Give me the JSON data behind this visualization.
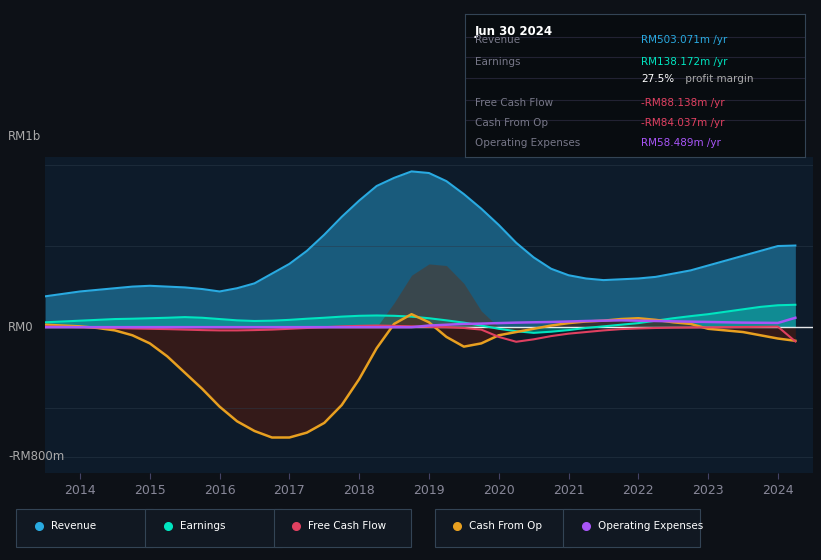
{
  "bg_color": "#0d1117",
  "plot_bg_color": "#0d1b2a",
  "ylabel_top": "RM1b",
  "ylabel_bottom": "-RM800m",
  "y_zero_label": "RM0",
  "years": [
    2013.5,
    2014.0,
    2014.25,
    2014.5,
    2014.75,
    2015.0,
    2015.25,
    2015.5,
    2015.75,
    2016.0,
    2016.25,
    2016.5,
    2016.75,
    2017.0,
    2017.25,
    2017.5,
    2017.75,
    2018.0,
    2018.25,
    2018.5,
    2018.75,
    2019.0,
    2019.25,
    2019.5,
    2019.75,
    2020.0,
    2020.25,
    2020.5,
    2020.75,
    2021.0,
    2021.25,
    2021.5,
    2021.75,
    2022.0,
    2022.25,
    2022.5,
    2022.75,
    2023.0,
    2023.25,
    2023.5,
    2023.75,
    2024.0,
    2024.25
  ],
  "revenue": [
    190,
    220,
    230,
    240,
    250,
    255,
    250,
    245,
    235,
    220,
    240,
    270,
    330,
    390,
    470,
    570,
    680,
    780,
    870,
    920,
    960,
    950,
    900,
    820,
    730,
    630,
    520,
    430,
    360,
    320,
    300,
    290,
    295,
    300,
    310,
    330,
    350,
    380,
    410,
    440,
    470,
    500,
    503
  ],
  "earnings": [
    30,
    40,
    45,
    50,
    52,
    55,
    58,
    62,
    58,
    50,
    42,
    38,
    40,
    45,
    52,
    58,
    65,
    70,
    72,
    70,
    65,
    55,
    42,
    28,
    10,
    -10,
    -25,
    -35,
    -28,
    -18,
    -5,
    5,
    15,
    25,
    40,
    55,
    68,
    80,
    95,
    110,
    125,
    135,
    138
  ],
  "cash_from_op": [
    15,
    5,
    -5,
    -20,
    -50,
    -100,
    -180,
    -280,
    -380,
    -490,
    -580,
    -640,
    -680,
    -680,
    -650,
    -590,
    -480,
    -320,
    -130,
    20,
    80,
    30,
    -60,
    -120,
    -100,
    -50,
    -30,
    -10,
    10,
    25,
    35,
    40,
    50,
    55,
    45,
    30,
    20,
    -10,
    -20,
    -30,
    -50,
    -70,
    -84
  ],
  "operating_expenses_pos": [
    0,
    0,
    0,
    0,
    0,
    0,
    0,
    0,
    0,
    0,
    0,
    0,
    0,
    0,
    0,
    0,
    0,
    0,
    0,
    150,
    320,
    390,
    380,
    270,
    100,
    0,
    0,
    0,
    0,
    0,
    0,
    0,
    0,
    0,
    0,
    0,
    0,
    0,
    0,
    0,
    0,
    0,
    0
  ],
  "free_cash_flow": [
    5,
    0,
    -2,
    -5,
    -8,
    -10,
    -12,
    -15,
    -18,
    -20,
    -20,
    -18,
    -15,
    -10,
    -5,
    0,
    5,
    8,
    10,
    8,
    5,
    2,
    0,
    -5,
    -15,
    -60,
    -90,
    -75,
    -55,
    -40,
    -30,
    -20,
    -12,
    -8,
    -5,
    -3,
    -2,
    -1,
    0,
    1,
    2,
    3,
    -88
  ],
  "op_expenses_line": [
    0,
    0,
    0,
    0,
    0,
    0,
    0,
    0,
    0,
    0,
    0,
    0,
    0,
    0,
    0,
    0,
    0,
    0,
    0,
    0,
    0,
    10,
    15,
    20,
    22,
    25,
    28,
    30,
    32,
    35,
    38,
    40,
    42,
    40,
    38,
    36,
    34,
    32,
    30,
    28,
    27,
    26,
    58
  ],
  "revenue_color": "#29aae1",
  "earnings_color": "#00e5c0",
  "free_cash_flow_color": "#e04060",
  "cash_from_op_color": "#e8a020",
  "op_expenses_color": "#a855f7",
  "fill_revenue_alpha": 0.45,
  "fill_earnings_alpha": 0.35,
  "fill_cfop_alpha": 0.65,
  "fill_opex_alpha": 0.5,
  "info_box": {
    "date": "Jun 30 2024",
    "revenue_label": "Revenue",
    "revenue_value": "RM503.071m",
    "revenue_color": "#29aae1",
    "earnings_label": "Earnings",
    "earnings_value": "RM138.172m",
    "earnings_color": "#00e5c0",
    "margin_value": "27.5%",
    "margin_text": " profit margin",
    "fcf_label": "Free Cash Flow",
    "fcf_value": "-RM88.138m",
    "fcf_color": "#e04060",
    "cfop_label": "Cash From Op",
    "cfop_value": "-RM84.037m",
    "cfop_color": "#e04060",
    "opex_label": "Operating Expenses",
    "opex_value": "RM58.489m",
    "opex_color": "#a855f7"
  },
  "legend_items": [
    {
      "label": "Revenue",
      "color": "#29aae1"
    },
    {
      "label": "Earnings",
      "color": "#00e5c0"
    },
    {
      "label": "Free Cash Flow",
      "color": "#e04060"
    },
    {
      "label": "Cash From Op",
      "color": "#e8a020"
    },
    {
      "label": "Operating Expenses",
      "color": "#a855f7"
    }
  ],
  "xlim": [
    2013.5,
    2024.5
  ],
  "ylim": [
    -900,
    1050
  ],
  "xticks": [
    2014,
    2015,
    2016,
    2017,
    2018,
    2019,
    2020,
    2021,
    2022,
    2023,
    2024
  ]
}
